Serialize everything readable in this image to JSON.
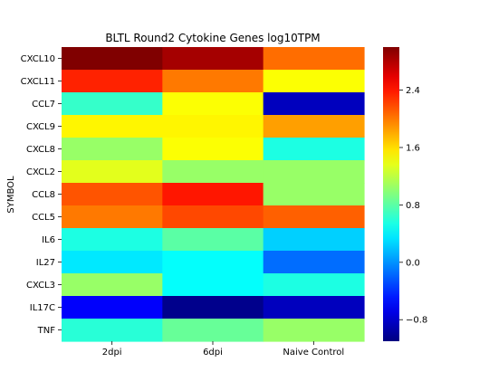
{
  "chart_data": {
    "type": "heatmap",
    "title": "BLTL Round2 Cytokine Genes log10TPM",
    "xlabel": "",
    "ylabel": "SYMBOL",
    "columns": [
      "2dpi",
      "6dpi",
      "Naive Control"
    ],
    "rows": [
      "CXCL10",
      "CXCL11",
      "CCL7",
      "CXCL9",
      "CXCL8",
      "CXCL2",
      "CCL8",
      "CCL5",
      "IL6",
      "IL27",
      "CXCL3",
      "IL17C",
      "TNF"
    ],
    "values": [
      [
        3.0,
        2.85,
        2.05
      ],
      [
        2.35,
        2.0,
        1.45
      ],
      [
        0.65,
        1.45,
        -0.85
      ],
      [
        1.5,
        1.5,
        1.85
      ],
      [
        1.05,
        1.45,
        0.55
      ],
      [
        1.35,
        1.05,
        1.05
      ],
      [
        2.15,
        2.4,
        1.05
      ],
      [
        2.0,
        2.2,
        2.1
      ],
      [
        0.55,
        0.8,
        0.25
      ],
      [
        0.35,
        0.45,
        -0.15
      ],
      [
        1.05,
        0.45,
        0.55
      ],
      [
        -0.6,
        -1.05,
        -0.85
      ],
      [
        0.6,
        0.85,
        1.05
      ]
    ],
    "colorbar": {
      "colormap": "jet",
      "vmin": -1.1,
      "vmax": 3.0,
      "ticks": [
        2.4,
        1.6,
        0.8,
        0.0,
        -0.8
      ],
      "tick_labels": [
        "2.4",
        "1.6",
        "0.8",
        "0.0",
        "−0.8"
      ]
    }
  }
}
